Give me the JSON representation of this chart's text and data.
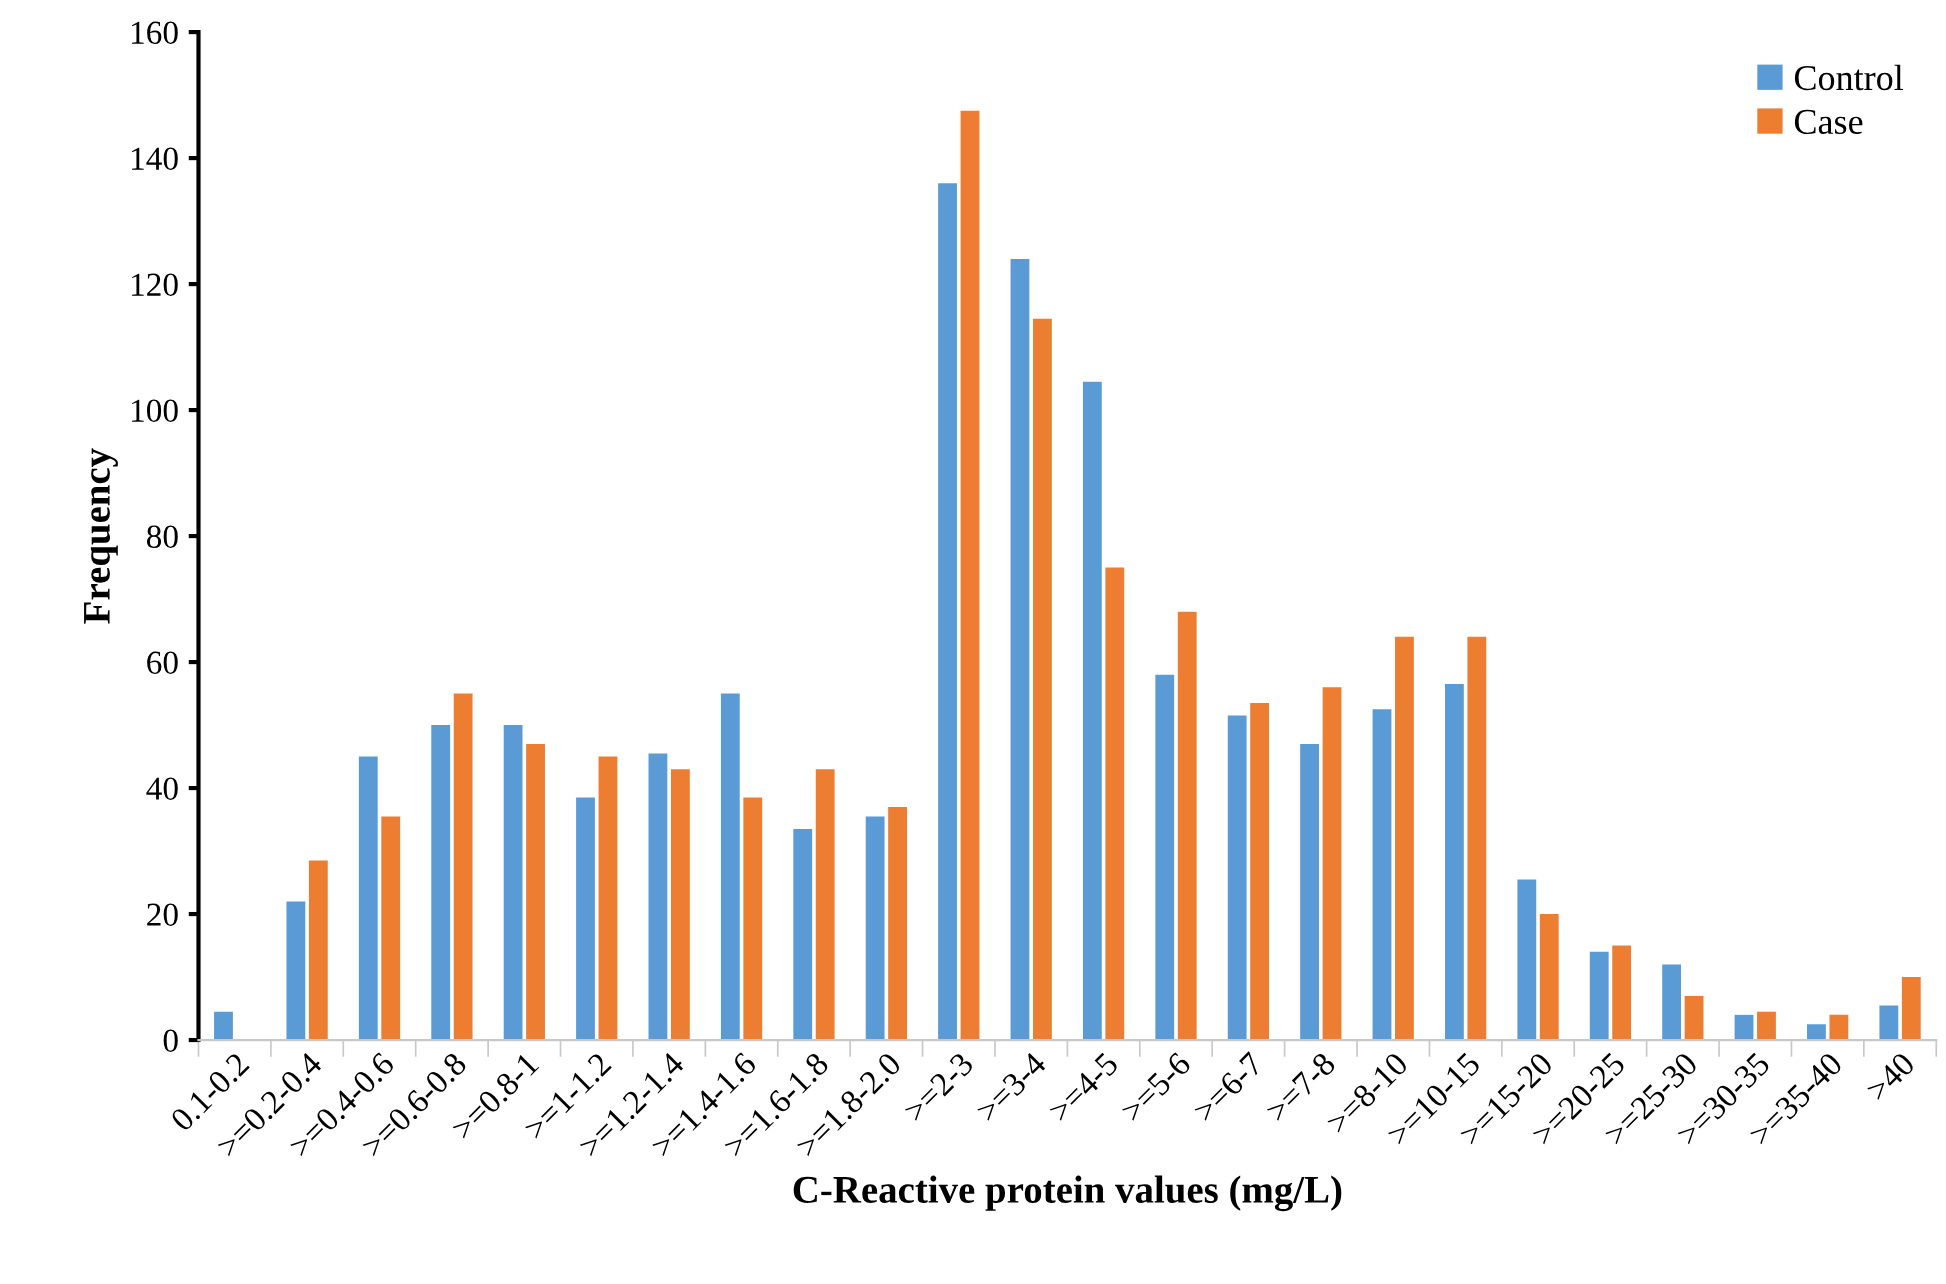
{
  "chart_data": {
    "type": "bar",
    "xlabel": "C-Reactive protein values (mg/L)",
    "ylabel": "Frequency",
    "categories": [
      "0.1-0.2",
      ">=0.2-0.4",
      ">=0.4-0.6",
      ">=0.6-0.8",
      ">=0.8-1",
      ">=1-1.2",
      ">=1.2-1.4",
      ">=1.4-1.6",
      ">=1.6-1.8",
      ">=1.8-2.0",
      ">=2-3",
      ">=3-4",
      ">=4-5",
      ">=5-6",
      ">=6-7",
      ">=7-8",
      ">=8-10",
      ">=10-15",
      ">=15-20",
      ">=20-25",
      ">=25-30",
      ">=30-35",
      ">=35-40",
      ">40"
    ],
    "series": [
      {
        "name": "Control",
        "color": "#5b9bd5",
        "values": [
          4.5,
          22,
          45,
          50,
          50,
          38.5,
          45.5,
          55,
          33.5,
          35.5,
          136,
          124,
          104.5,
          58,
          51.5,
          47,
          52.5,
          56.5,
          25.5,
          14,
          12,
          4,
          2.5,
          5.5
        ]
      },
      {
        "name": "Case",
        "color": "#ed7d31",
        "values": [
          0,
          28.5,
          35.5,
          55,
          47,
          45,
          43,
          38.5,
          43,
          37,
          147.5,
          114.5,
          75,
          68,
          53.5,
          56,
          64,
          64,
          20,
          15,
          7,
          4.5,
          4,
          10
        ]
      }
    ],
    "ylim": [
      0,
      160
    ],
    "yticks": [
      0,
      20,
      40,
      60,
      80,
      100,
      120,
      140,
      160
    ],
    "grid": false,
    "legend": "top right"
  }
}
